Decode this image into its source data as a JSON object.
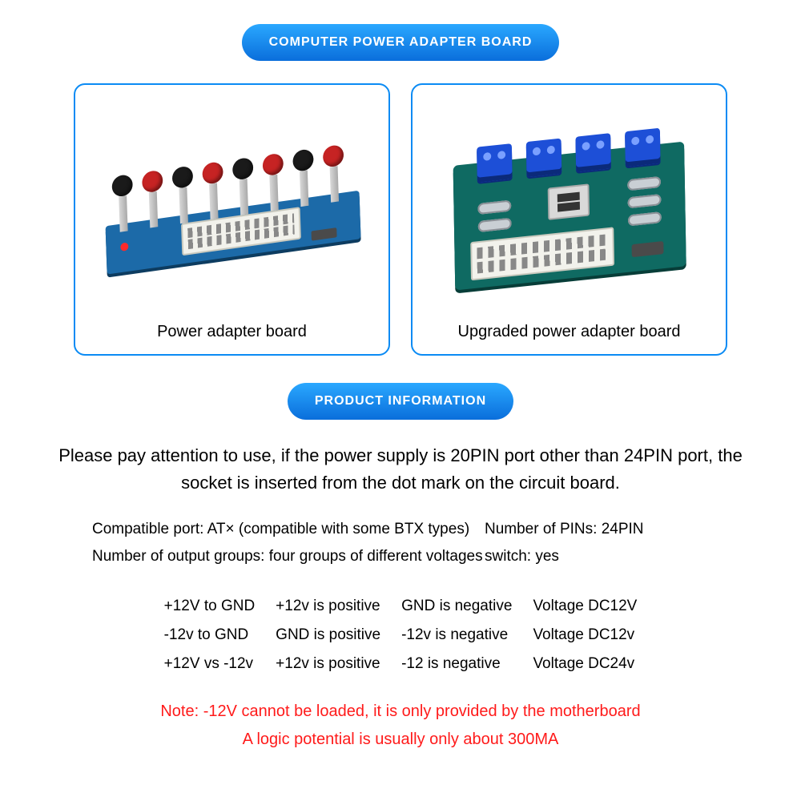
{
  "colors": {
    "accent": "#0b8bf4",
    "accent_gradient_light": "#2aa8ff",
    "accent_gradient_dark": "#0a6edb",
    "card_border": "#0b8bf4",
    "warning_text": "#ff1a1a",
    "body_text": "#000000",
    "background": "#ffffff"
  },
  "header": {
    "title": "COMPUTER POWER ADAPTER BOARD"
  },
  "cards": [
    {
      "caption": "Power adapter board",
      "icon": "pcb-blue-posts"
    },
    {
      "caption": "Upgraded power adapter board",
      "icon": "pcb-green-terminals"
    }
  ],
  "info_badge": "PRODUCT INFORMATION",
  "notice": "Please pay attention to use, if the power supply is 20PIN port other than 24PIN port, the socket is inserted from the dot mark on the circuit board.",
  "specs": {
    "left": [
      "Compatible port: AT× (compatible with some BTX types)",
      "Number of output groups: four groups of different voltages"
    ],
    "right": [
      "Number of PINs: 24PIN",
      "switch: yes"
    ]
  },
  "voltage_table": {
    "columns": [
      [
        "+12V to GND",
        "-12v to GND",
        "+12V vs -12v"
      ],
      [
        "+12v is positive",
        "GND is positive",
        "+12v is positive"
      ],
      [
        "GND is negative",
        "-12v is negative",
        "-12 is negative"
      ],
      [
        "Voltage DC12V",
        "Voltage DC12v",
        "Voltage DC24v"
      ]
    ]
  },
  "warning": {
    "line1": "Note: -12V cannot be loaded, it is only provided by the motherboard",
    "line2": "A logic potential is usually only about 300MA"
  }
}
